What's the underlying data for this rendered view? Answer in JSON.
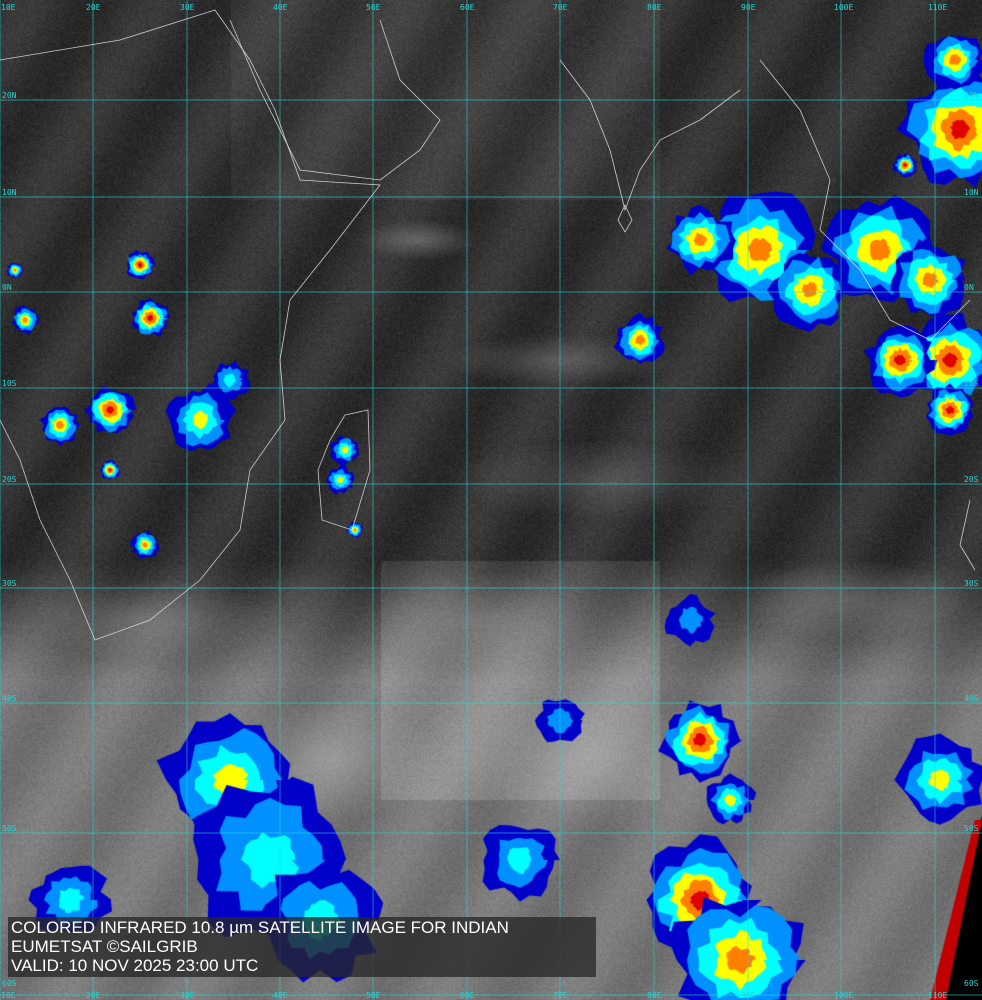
{
  "caption": {
    "line1": "COLORED INFRARED 10.8 µm SATELLITE IMAGE FOR INDIAN",
    "line2": "EUMETSAT ©SAILGRIB",
    "line3": "VALID:  10 NOV 2025 23:00 UTC"
  },
  "grid": {
    "longitudes": [
      "10E",
      "20E",
      "30E",
      "40E",
      "50E",
      "60E",
      "70E",
      "80E",
      "90E",
      "100E",
      "110E"
    ],
    "latitudes": [
      "20N",
      "10N",
      "0N",
      "10S",
      "20S",
      "30S",
      "40S",
      "50S",
      "60S"
    ]
  },
  "colors": {
    "grid": "#22d8d8",
    "coast": "#e8e8e8",
    "cold_cloud_ramp": [
      "#0000c8",
      "#0090ff",
      "#00ffff",
      "#ffff00",
      "#ff8000",
      "#e00000"
    ]
  }
}
